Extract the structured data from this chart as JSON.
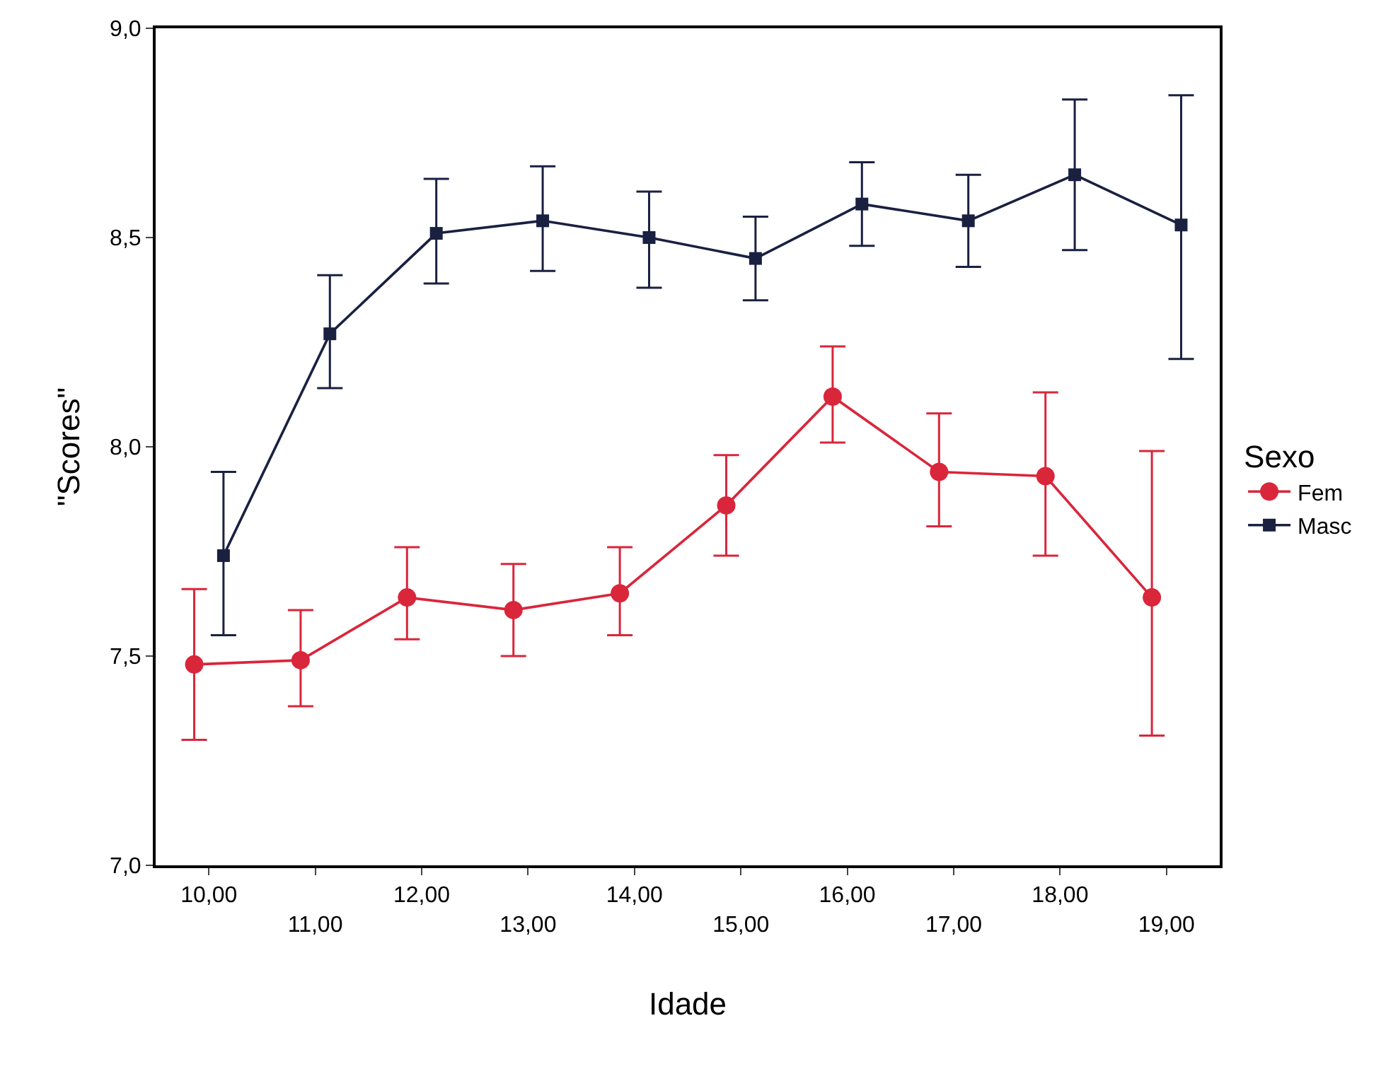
{
  "chart_data": {
    "type": "line",
    "xlabel": "Idade",
    "ylabel": "\"Scores\"",
    "legend_title": "Sexo",
    "categories": [
      "10,00",
      "11,00",
      "12,00",
      "13,00",
      "14,00",
      "15,00",
      "16,00",
      "17,00",
      "18,00",
      "19,00"
    ],
    "series": [
      {
        "name": "Fem",
        "color": "#d9263b",
        "marker": "circle",
        "values": [
          7.48,
          7.49,
          7.64,
          7.61,
          7.65,
          7.86,
          8.12,
          7.94,
          7.93,
          7.64
        ],
        "errors": [
          [
            7.3,
            7.66
          ],
          [
            7.38,
            7.61
          ],
          [
            7.54,
            7.76
          ],
          [
            7.5,
            7.72
          ],
          [
            7.55,
            7.76
          ],
          [
            7.74,
            7.98
          ],
          [
            8.01,
            8.24
          ],
          [
            7.81,
            8.08
          ],
          [
            7.74,
            8.13
          ],
          [
            7.31,
            7.99
          ]
        ]
      },
      {
        "name": "Masc",
        "color": "#1a2040",
        "marker": "square",
        "values": [
          7.74,
          8.27,
          8.51,
          8.54,
          8.5,
          8.45,
          8.58,
          8.54,
          8.65,
          8.53
        ],
        "errors": [
          [
            7.55,
            7.94
          ],
          [
            8.14,
            8.41
          ],
          [
            8.39,
            8.64
          ],
          [
            8.42,
            8.67
          ],
          [
            8.38,
            8.61
          ],
          [
            8.35,
            8.55
          ],
          [
            8.48,
            8.68
          ],
          [
            8.43,
            8.65
          ],
          [
            8.47,
            8.83
          ],
          [
            8.21,
            8.84
          ]
        ]
      }
    ],
    "ylim": [
      7.0,
      9.0
    ],
    "yticks": [
      {
        "value": 7.0,
        "label": "7,0"
      },
      {
        "value": 7.5,
        "label": "7,5"
      },
      {
        "value": 8.0,
        "label": "8,0"
      },
      {
        "value": 8.5,
        "label": "8,5"
      },
      {
        "value": 9.0,
        "label": "9,0"
      }
    ],
    "legend": "right",
    "line_style": "solid"
  }
}
